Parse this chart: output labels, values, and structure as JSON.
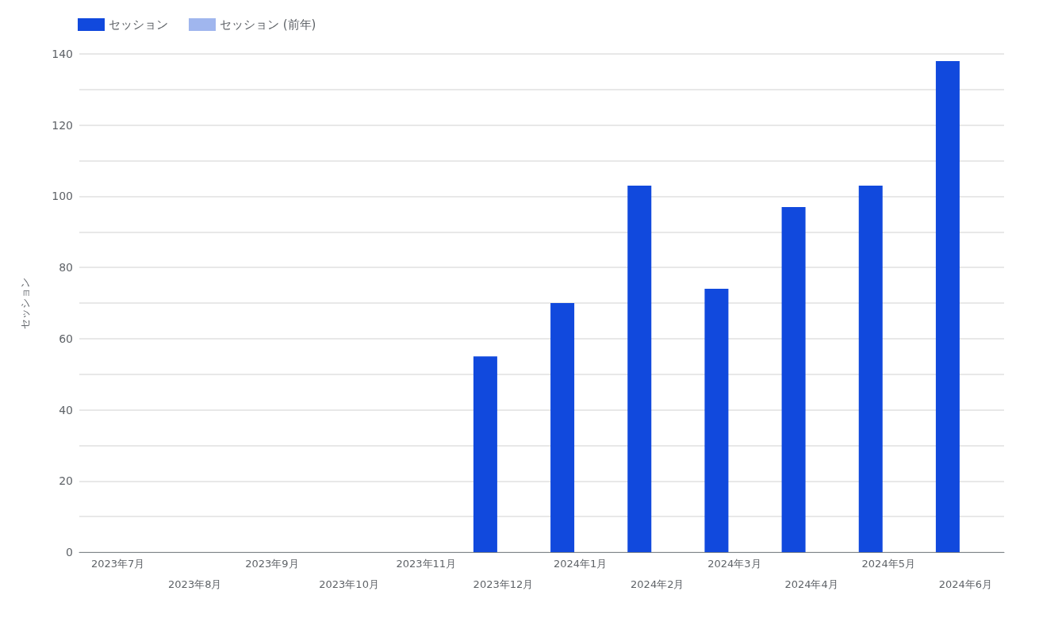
{
  "chart_data": {
    "type": "bar",
    "ylabel": "セッション",
    "categories": [
      "2023年7月",
      "2023年8月",
      "2023年9月",
      "2023年10月",
      "2023年11月",
      "2023年12月",
      "2024年1月",
      "2024年2月",
      "2024年3月",
      "2024年4月",
      "2024年5月",
      "2024年6月"
    ],
    "series": [
      {
        "name": "セッション",
        "color": "#1149dd",
        "values": [
          null,
          null,
          null,
          null,
          null,
          55,
          70,
          103,
          74,
          97,
          103,
          138
        ]
      },
      {
        "name": "セッション (前年)",
        "color": "#a0b6ee",
        "values": [
          null,
          null,
          null,
          null,
          null,
          null,
          null,
          null,
          null,
          null,
          null,
          null
        ]
      }
    ],
    "ylim": [
      0,
      140
    ],
    "yticks": [
      0,
      {
        "value": 10,
        "label": null
      },
      20,
      {
        "value": 30,
        "label": null
      },
      40,
      {
        "value": 50,
        "label": null
      },
      60,
      {
        "value": 70,
        "label": null
      },
      80,
      {
        "value": 90,
        "label": null
      },
      100,
      {
        "value": 110,
        "label": null
      },
      120,
      {
        "value": 130,
        "label": null
      },
      140
    ],
    "grid": "y",
    "legend": "top left"
  }
}
